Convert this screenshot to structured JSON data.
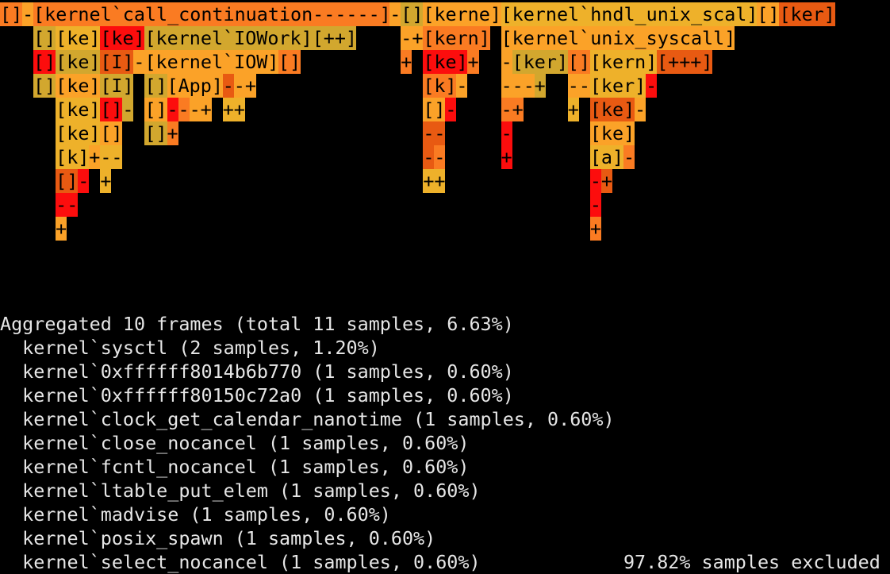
{
  "flamegraph": {
    "palette": {
      "r": "#fc0d0d",
      "o": "#e85a12",
      "d": "#fa7b22",
      "a": "#fba228",
      "y": "#d2a72e",
      "g": "#eeb12a"
    },
    "rows": [
      [
        {
          "col": 0,
          "w": 2,
          "t": "[]",
          "c": "d"
        },
        {
          "col": 2,
          "w": 1,
          "t": "-",
          "c": "a"
        },
        {
          "col": 3,
          "w": 32,
          "t": "[kernel`call_continuation------]",
          "c": "d"
        },
        {
          "col": 35,
          "w": 1,
          "t": "-",
          "c": "a"
        },
        {
          "col": 36,
          "w": 2,
          "t": "[]",
          "c": "y"
        },
        {
          "col": 38,
          "w": 7,
          "t": "[kerne]",
          "c": "a"
        },
        {
          "col": 45,
          "w": 23,
          "t": "[kernel`hndl_unix_scal]",
          "c": "g"
        },
        {
          "col": 68,
          "w": 2,
          "t": "[]",
          "c": "a"
        },
        {
          "col": 70,
          "w": 5,
          "t": "[ker]",
          "c": "o"
        }
      ],
      [
        {
          "col": 3,
          "w": 2,
          "t": "[]",
          "c": "y"
        },
        {
          "col": 5,
          "w": 4,
          "t": "[ke]",
          "c": "g"
        },
        {
          "col": 9,
          "w": 4,
          "t": "[ke]",
          "c": "r"
        },
        {
          "col": 13,
          "w": 19,
          "t": "[kernel`IOWork][++]",
          "c": "y"
        },
        {
          "col": 36,
          "w": 2,
          "t": "-+",
          "c": "a"
        },
        {
          "col": 38,
          "w": 6,
          "t": "[kern]",
          "c": "d"
        },
        {
          "col": 45,
          "w": 21,
          "t": "[kernel`unix_syscall]",
          "c": "a"
        }
      ],
      [
        {
          "col": 3,
          "w": 2,
          "t": "[]",
          "c": "r"
        },
        {
          "col": 5,
          "w": 4,
          "t": "[ke]",
          "c": "y"
        },
        {
          "col": 9,
          "w": 3,
          "t": "[I]",
          "c": "o"
        },
        {
          "col": 12,
          "w": 1,
          "t": "-",
          "c": "a"
        },
        {
          "col": 13,
          "w": 12,
          "t": "[kernel`IOW]",
          "c": "a"
        },
        {
          "col": 25,
          "w": 2,
          "t": "[]",
          "c": "d"
        },
        {
          "col": 36,
          "w": 1,
          "t": "+",
          "c": "d"
        },
        {
          "col": 38,
          "w": 4,
          "t": "[ke]",
          "c": "r"
        },
        {
          "col": 42,
          "w": 1,
          "t": "+",
          "c": "d"
        },
        {
          "col": 45,
          "w": 1,
          "t": "-",
          "c": "a"
        },
        {
          "col": 46,
          "w": 5,
          "t": "[ker]",
          "c": "y"
        },
        {
          "col": 51,
          "w": 2,
          "t": "[]",
          "c": "d"
        },
        {
          "col": 53,
          "w": 6,
          "t": "[kern]",
          "c": "g"
        },
        {
          "col": 59,
          "w": 5,
          "t": "[+++]",
          "c": "o"
        }
      ],
      [
        {
          "col": 3,
          "w": 2,
          "t": "[]",
          "c": "y"
        },
        {
          "col": 5,
          "w": 4,
          "t": "[ke]",
          "c": "a"
        },
        {
          "col": 9,
          "w": 3,
          "t": "[I]",
          "c": "y"
        },
        {
          "col": 13,
          "w": 2,
          "t": "[]",
          "c": "y"
        },
        {
          "col": 15,
          "w": 5,
          "t": "[App]",
          "c": "a"
        },
        {
          "col": 20,
          "w": 1,
          "t": "-",
          "c": "o"
        },
        {
          "col": 21,
          "w": 2,
          "t": "-+",
          "c": "a"
        },
        {
          "col": 38,
          "w": 3,
          "t": "[k]",
          "c": "d"
        },
        {
          "col": 41,
          "w": 1,
          "t": "-",
          "c": "a"
        },
        {
          "col": 45,
          "w": 3,
          "t": "---",
          "c": "a"
        },
        {
          "col": 48,
          "w": 1,
          "t": "+",
          "c": "y"
        },
        {
          "col": 51,
          "w": 2,
          "t": "--",
          "c": "a"
        },
        {
          "col": 53,
          "w": 5,
          "t": "[ker]",
          "c": "g"
        },
        {
          "col": 58,
          "w": 1,
          "t": "-",
          "c": "r"
        }
      ],
      [
        {
          "col": 5,
          "w": 4,
          "t": "[ke]",
          "c": "g"
        },
        {
          "col": 9,
          "w": 2,
          "t": "[]",
          "c": "r"
        },
        {
          "col": 11,
          "w": 1,
          "t": "-",
          "c": "y"
        },
        {
          "col": 13,
          "w": 2,
          "t": "[]",
          "c": "a"
        },
        {
          "col": 15,
          "w": 1,
          "t": "-",
          "c": "r"
        },
        {
          "col": 16,
          "w": 1,
          "t": "-",
          "c": "d"
        },
        {
          "col": 17,
          "w": 2,
          "t": "-+",
          "c": "a"
        },
        {
          "col": 20,
          "w": 2,
          "t": "++",
          "c": "g"
        },
        {
          "col": 38,
          "w": 2,
          "t": "[]",
          "c": "a"
        },
        {
          "col": 40,
          "w": 1,
          "t": "-",
          "c": "r"
        },
        {
          "col": 45,
          "w": 2,
          "t": "-+",
          "c": "d"
        },
        {
          "col": 51,
          "w": 1,
          "t": "+",
          "c": "g"
        },
        {
          "col": 53,
          "w": 4,
          "t": "[ke]",
          "c": "o"
        },
        {
          "col": 57,
          "w": 1,
          "t": "-",
          "c": "a"
        }
      ],
      [
        {
          "col": 5,
          "w": 4,
          "t": "[ke]",
          "c": "g"
        },
        {
          "col": 9,
          "w": 2,
          "t": "[]",
          "c": "a"
        },
        {
          "col": 13,
          "w": 2,
          "t": "[]",
          "c": "y"
        },
        {
          "col": 15,
          "w": 1,
          "t": "+",
          "c": "d"
        },
        {
          "col": 38,
          "w": 2,
          "t": "--",
          "c": "o"
        },
        {
          "col": 45,
          "w": 1,
          "t": "-",
          "c": "r"
        },
        {
          "col": 53,
          "w": 4,
          "t": "[ke]",
          "c": "a"
        }
      ],
      [
        {
          "col": 5,
          "w": 3,
          "t": "[k]",
          "c": "g"
        },
        {
          "col": 8,
          "w": 1,
          "t": "+",
          "c": "a"
        },
        {
          "col": 9,
          "w": 2,
          "t": "--",
          "c": "g"
        },
        {
          "col": 38,
          "w": 1,
          "t": "-",
          "c": "o"
        },
        {
          "col": 39,
          "w": 1,
          "t": "-",
          "c": "d"
        },
        {
          "col": 45,
          "w": 1,
          "t": "+",
          "c": "r"
        },
        {
          "col": 53,
          "w": 3,
          "t": "[a]",
          "c": "g"
        },
        {
          "col": 56,
          "w": 1,
          "t": "-",
          "c": "d"
        }
      ],
      [
        {
          "col": 5,
          "w": 2,
          "t": "[]",
          "c": "o"
        },
        {
          "col": 7,
          "w": 1,
          "t": "-",
          "c": "r"
        },
        {
          "col": 9,
          "w": 1,
          "t": "+",
          "c": "g"
        },
        {
          "col": 38,
          "w": 2,
          "t": "++",
          "c": "g"
        },
        {
          "col": 53,
          "w": 1,
          "t": "-",
          "c": "r"
        },
        {
          "col": 54,
          "w": 1,
          "t": "+",
          "c": "o"
        }
      ],
      [
        {
          "col": 5,
          "w": 2,
          "t": "--",
          "c": "r"
        },
        {
          "col": 53,
          "w": 1,
          "t": "-",
          "c": "r"
        }
      ],
      [
        {
          "col": 5,
          "w": 1,
          "t": "+",
          "c": "a"
        },
        {
          "col": 53,
          "w": 1,
          "t": "+",
          "c": "d"
        }
      ]
    ]
  },
  "summary": {
    "lines": [
      "Aggregated 10 frames (total 11 samples, 6.63%)",
      "  kernel`sysctl (2 samples, 1.20%)",
      "  kernel`0xffffff8014b6b770 (1 samples, 0.60%)",
      "  kernel`0xffffff80150c72a0 (1 samples, 0.60%)",
      "  kernel`clock_get_calendar_nanotime (1 samples, 0.60%)",
      "  kernel`close_nocancel (1 samples, 0.60%)",
      "  kernel`fcntl_nocancel (1 samples, 0.60%)",
      "  kernel`ltable_put_elem (1 samples, 0.60%)",
      "  kernel`madvise (1 samples, 0.60%)",
      "  kernel`posix_spawn (1 samples, 0.60%)",
      "  kernel`select_nocancel (1 samples, 0.60%)"
    ],
    "excluded": "97.82% samples excluded"
  }
}
